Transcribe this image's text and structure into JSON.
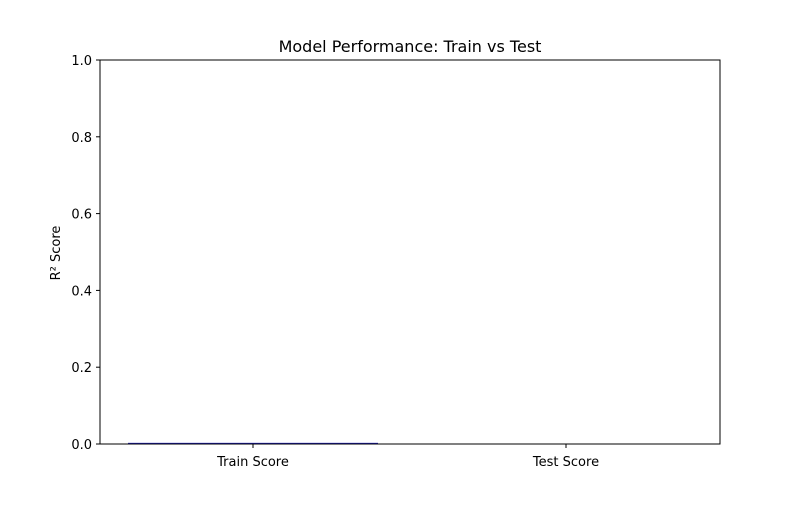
{
  "chart_data": {
    "type": "bar",
    "title": "Model Performance: Train vs Test",
    "xlabel": "",
    "ylabel": "R² Score",
    "categories": [
      "Train Score",
      "Test Score"
    ],
    "values": [
      0.003,
      0.0
    ],
    "ylim": [
      0,
      1.0
    ],
    "yticks": [
      "0.0",
      "0.2",
      "0.4",
      "0.6",
      "0.8",
      "1.0"
    ],
    "bar_colors": [
      "#1f1fbf",
      "#ff6347"
    ],
    "grid": false
  }
}
